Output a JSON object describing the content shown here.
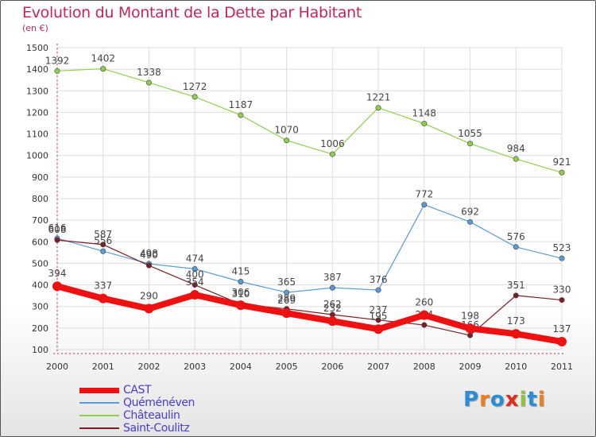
{
  "title": "Evolution du Montant de la Dette par Habitant",
  "subtitle": "(en €)",
  "logo": {
    "letters": [
      "P",
      "r",
      "o",
      "x",
      "i",
      "t",
      "i"
    ],
    "colors": [
      "#2a8ed6",
      "#f07c1a",
      "#2a8ed6",
      "#e62a1e",
      "#8cc43c",
      "#2a8ed6",
      "#f07c1a"
    ]
  },
  "chart_data": {
    "type": "line",
    "categories": [
      "2000",
      "2001",
      "2002",
      "2003",
      "2004",
      "2005",
      "2006",
      "2007",
      "2008",
      "2009",
      "2010",
      "2011"
    ],
    "ylim": [
      100,
      1500
    ],
    "yticks": [
      100,
      200,
      300,
      400,
      500,
      600,
      700,
      800,
      900,
      1000,
      1100,
      1200,
      1300,
      1400,
      1500
    ],
    "grid": true,
    "legend_position": "bottom-left",
    "series": [
      {
        "name": "CAST",
        "color": "#ee1111",
        "values": [
          394,
          337,
          290,
          354,
          306,
          269,
          232,
          195,
          260,
          198,
          173,
          137
        ]
      },
      {
        "name": "Quéménéven",
        "color": "#5b9bd5",
        "values": [
          616,
          556,
          498,
          474,
          415,
          365,
          387,
          376,
          772,
          692,
          576,
          523
        ]
      },
      {
        "name": "Châteaulin",
        "color": "#8ed04a",
        "values": [
          1392,
          1402,
          1338,
          1272,
          1187,
          1070,
          1006,
          1221,
          1148,
          1055,
          984,
          921
        ]
      },
      {
        "name": "Saint-Coulitz",
        "color": "#7a1f25",
        "values": [
          608,
          587,
          490,
          400,
          310,
          289,
          262,
          237,
          214,
          166,
          351,
          330
        ]
      }
    ]
  }
}
